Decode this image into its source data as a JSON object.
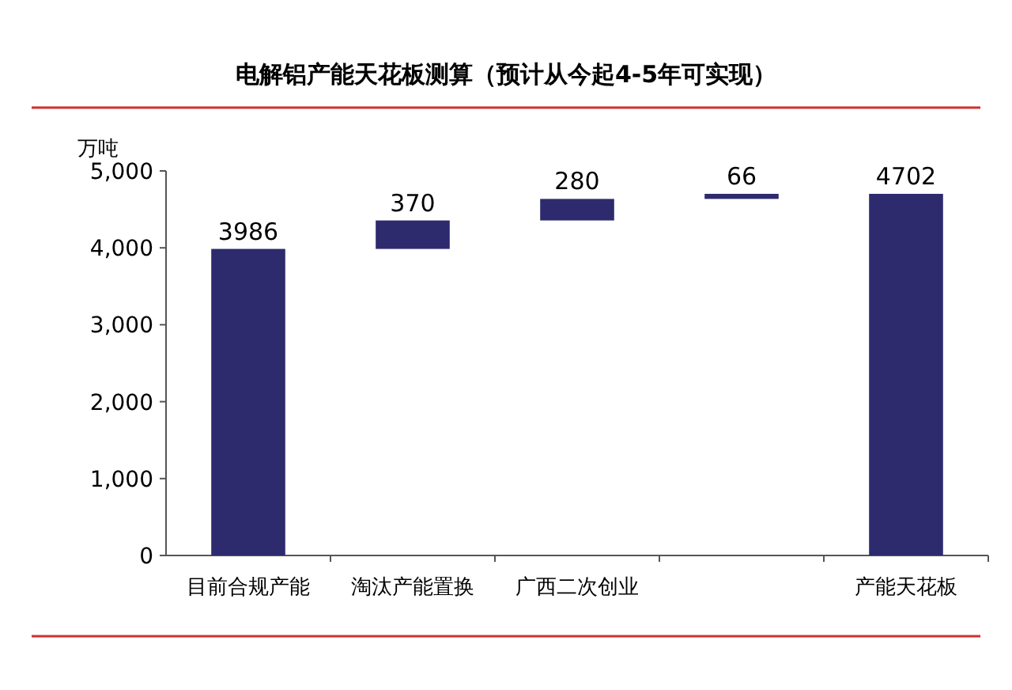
{
  "chart_data": {
    "type": "bar",
    "title": "电解铝产能天花板测算（预计从今起4-5年可实现）",
    "ylabel": "万吨",
    "categories": [
      "目前合规产能",
      "淘汰产能置换",
      "广西二次创业",
      null,
      "产能天花板"
    ],
    "values": [
      3986,
      370,
      280,
      66,
      4702
    ],
    "base": [
      0,
      3986,
      4356,
      4636,
      0
    ],
    "color": "#2e2a6e",
    "ylim": [
      0,
      5000
    ],
    "yticks": [
      {
        "value": 0,
        "label": "0"
      },
      {
        "value": 1000,
        "label": "1,000"
      },
      {
        "value": 2000,
        "label": "2,000"
      },
      {
        "value": 3000,
        "label": "3,000"
      },
      {
        "value": 4000,
        "label": "4,000"
      },
      {
        "value": 5000,
        "label": "5,000"
      }
    ],
    "data_labels": true
  }
}
